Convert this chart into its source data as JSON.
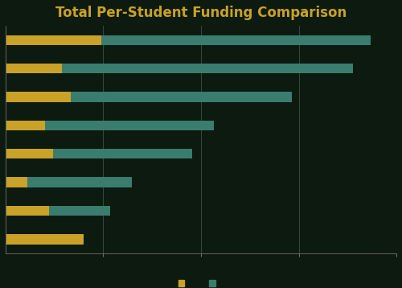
{
  "title": "Total Per-Student Funding Comparison",
  "title_color": "#C9A227",
  "background_color": "#0d1a10",
  "bar_color_gold": "#C9A227",
  "bar_color_teal": "#3A7D6E",
  "legend_label_gold": " ",
  "legend_label_teal": " ",
  "bars": [
    {
      "gold": 1800,
      "teal": 0
    },
    {
      "gold": 1000,
      "teal": 1400
    },
    {
      "gold": 500,
      "teal": 2400
    },
    {
      "gold": 1100,
      "teal": 3200
    },
    {
      "gold": 900,
      "teal": 3900
    },
    {
      "gold": 1500,
      "teal": 5100
    },
    {
      "gold": 1300,
      "teal": 6700
    },
    {
      "gold": 2200,
      "teal": 6200
    }
  ],
  "xlim": [
    0,
    9000
  ],
  "xticks_count": 4,
  "grid_color": "#3a4a3a",
  "spine_color": "#666666",
  "tick_color": "#888888",
  "figsize": [
    5.0,
    3.58
  ],
  "dpi": 100,
  "bar_height": 0.35
}
